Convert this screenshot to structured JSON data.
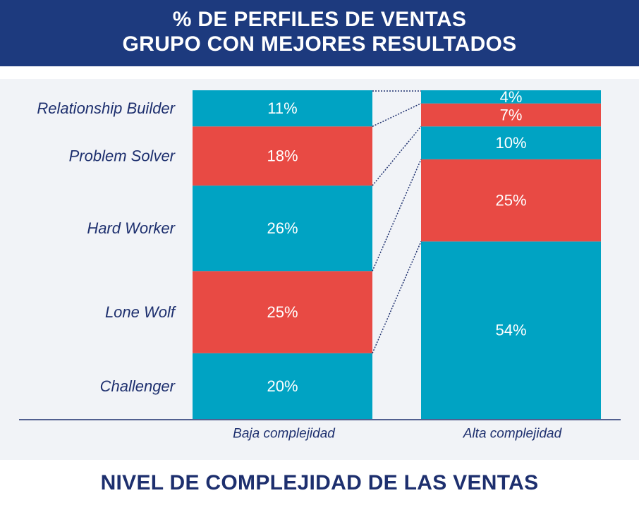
{
  "header": {
    "line1": "% DE PERFILES DE VENTAS",
    "line2": "GRUPO CON MEJORES RESULTADOS"
  },
  "footer": {
    "title": "NIVEL DE COMPLEJIDAD DE LAS VENTAS"
  },
  "colors": {
    "header_bg": "#1d3a7e",
    "teal": "#00a3c3",
    "red": "#e84a44",
    "text_navy": "#1d2f6e",
    "plot_bg": "#f1f3f7"
  },
  "chart_data": {
    "type": "bar",
    "stacked": true,
    "orientation": "vertical",
    "unit": "%",
    "title": "% DE PERFILES DE VENTAS - GRUPO CON MEJORES RESULTADOS",
    "xlabel": "NIVEL DE COMPLEJIDAD DE LAS VENTAS",
    "ylabel": "",
    "categories": [
      "Baja complejidad",
      "Alta complejidad"
    ],
    "series": [
      {
        "name": "Challenger",
        "values": [
          20,
          54
        ],
        "color": "teal"
      },
      {
        "name": "Lone Wolf",
        "values": [
          25,
          25
        ],
        "color": "red"
      },
      {
        "name": "Hard Worker",
        "values": [
          26,
          10
        ],
        "color": "teal"
      },
      {
        "name": "Problem Solver",
        "values": [
          18,
          7
        ],
        "color": "red"
      },
      {
        "name": "Relationship Builder",
        "values": [
          11,
          4
        ],
        "color": "teal"
      }
    ],
    "segment_labels": [
      [
        "20%",
        "54%"
      ],
      [
        "25%",
        "25%"
      ],
      [
        "26%",
        "10%"
      ],
      [
        "18%",
        "7%"
      ],
      [
        "11%",
        "4%"
      ]
    ],
    "connectors": "dotted lines linking segment boundaries between the two bars"
  }
}
